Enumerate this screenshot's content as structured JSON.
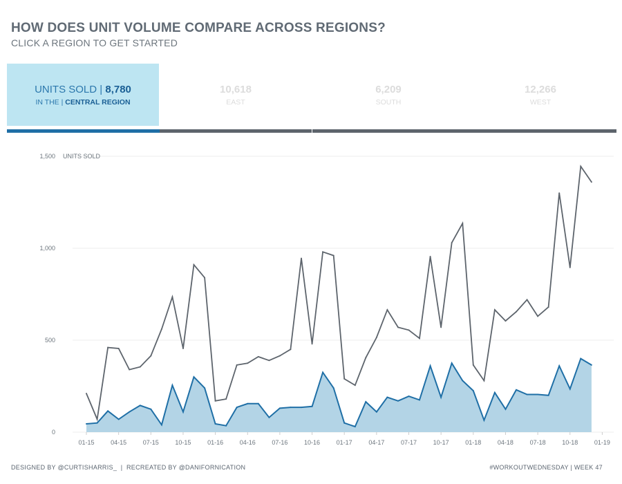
{
  "header": {
    "title": "HOW DOES UNIT VOLUME COMPARE ACROSS REGIONS?",
    "subtitle": "CLICK A REGION TO GET STARTED"
  },
  "selected": {
    "metric_label": "UNITS SOLD",
    "separator": "|",
    "value": "8,780",
    "prefix": "IN THE",
    "region_label": "CENTRAL REGION"
  },
  "tiles": [
    {
      "value": "10,618",
      "name": "EAST"
    },
    {
      "value": "6,209",
      "name": "SOUTH"
    },
    {
      "value": "12,266",
      "name": "WEST"
    }
  ],
  "colors": {
    "selected_tile_bg": "#bde5f2",
    "selected_bar": "#1f6fa6",
    "unselected_bar": "#5d646c",
    "total_line": "#5d646c",
    "region_line": "#1f6fa6",
    "region_fill": "#b3d4e6"
  },
  "chart_data": {
    "type": "area",
    "ylabel": "UNITS SOLD",
    "ylim": [
      0,
      1500
    ],
    "yticks": [
      0,
      500,
      1000,
      1500
    ],
    "ytick_labels": [
      "0",
      "500",
      "1,000",
      "1,500"
    ],
    "xtick_labels": [
      "01-15",
      "04-15",
      "07-15",
      "10-15",
      "01-16",
      "04-16",
      "07-16",
      "10-16",
      "01-17",
      "04-17",
      "07-17",
      "10-17",
      "01-18",
      "04-18",
      "07-18",
      "10-18",
      "01-19"
    ],
    "x_start": "2015-01",
    "x_end": "2018-12",
    "series": [
      {
        "values": [
          210,
          70,
          460,
          455,
          340,
          355,
          415,
          560,
          735,
          455,
          910,
          840,
          170,
          180,
          365,
          375,
          410,
          390,
          415,
          450,
          945,
          480,
          980,
          960,
          290,
          255,
          405,
          515,
          665,
          570,
          555,
          510,
          955,
          570,
          1030,
          1135,
          365,
          280,
          665,
          605,
          655,
          720,
          630,
          680,
          1300,
          895,
          1445,
          1360
        ]
      },
      {
        "values": [
          45,
          50,
          115,
          70,
          110,
          145,
          125,
          40,
          255,
          110,
          300,
          240,
          45,
          35,
          135,
          155,
          155,
          80,
          130,
          135,
          135,
          140,
          325,
          240,
          50,
          30,
          165,
          110,
          190,
          170,
          195,
          175,
          360,
          190,
          375,
          280,
          225,
          65,
          215,
          125,
          230,
          205,
          205,
          200,
          360,
          235,
          400,
          365
        ]
      }
    ]
  },
  "footer": {
    "designed_by": "DESIGNED BY @CURTISHARRIS_",
    "separator": "|",
    "recreated_by": "RECREATED BY @DANIFORNICATION",
    "hashtag": "#WORKOUTWEDNESDAY",
    "week": "WEEK 47"
  }
}
